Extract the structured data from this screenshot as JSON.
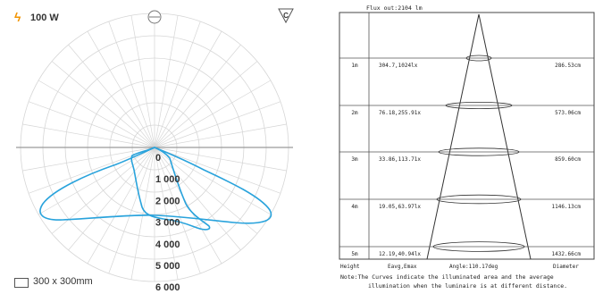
{
  "polar": {
    "power_label": "100 W",
    "plane_symbol": "C",
    "scale_label": "300 x 300mm",
    "radial_labels": [
      "0",
      "1 000",
      "2 000",
      "3 000",
      "4 000",
      "5 000",
      "6 000"
    ],
    "curve_color": "#29a3dc"
  },
  "cone": {
    "flux": "Flux out:2104 lm",
    "rows": [
      {
        "height": "1m",
        "values": "304.7,1024lx",
        "diameter": "286.53cm"
      },
      {
        "height": "2m",
        "values": "76.18,255.91x",
        "diameter": "573.06cm"
      },
      {
        "height": "3m",
        "values": "33.86,113.71x",
        "diameter": "859.60cm"
      },
      {
        "height": "4m",
        "values": "19.05,63.97lx",
        "diameter": "1146.13cm"
      },
      {
        "height": "5m",
        "values": "12.19,40.94lx",
        "diameter": "1432.66cm"
      }
    ],
    "footer": {
      "height": "Height",
      "values": "Eavg,Emax",
      "angle": "Angle:110.17deg",
      "diameter": "Diameter"
    },
    "note_line1": "Note:The Curves indicate the illuminated area and the average",
    "note_line2": "illumination when the luminaire is at different distance."
  }
}
